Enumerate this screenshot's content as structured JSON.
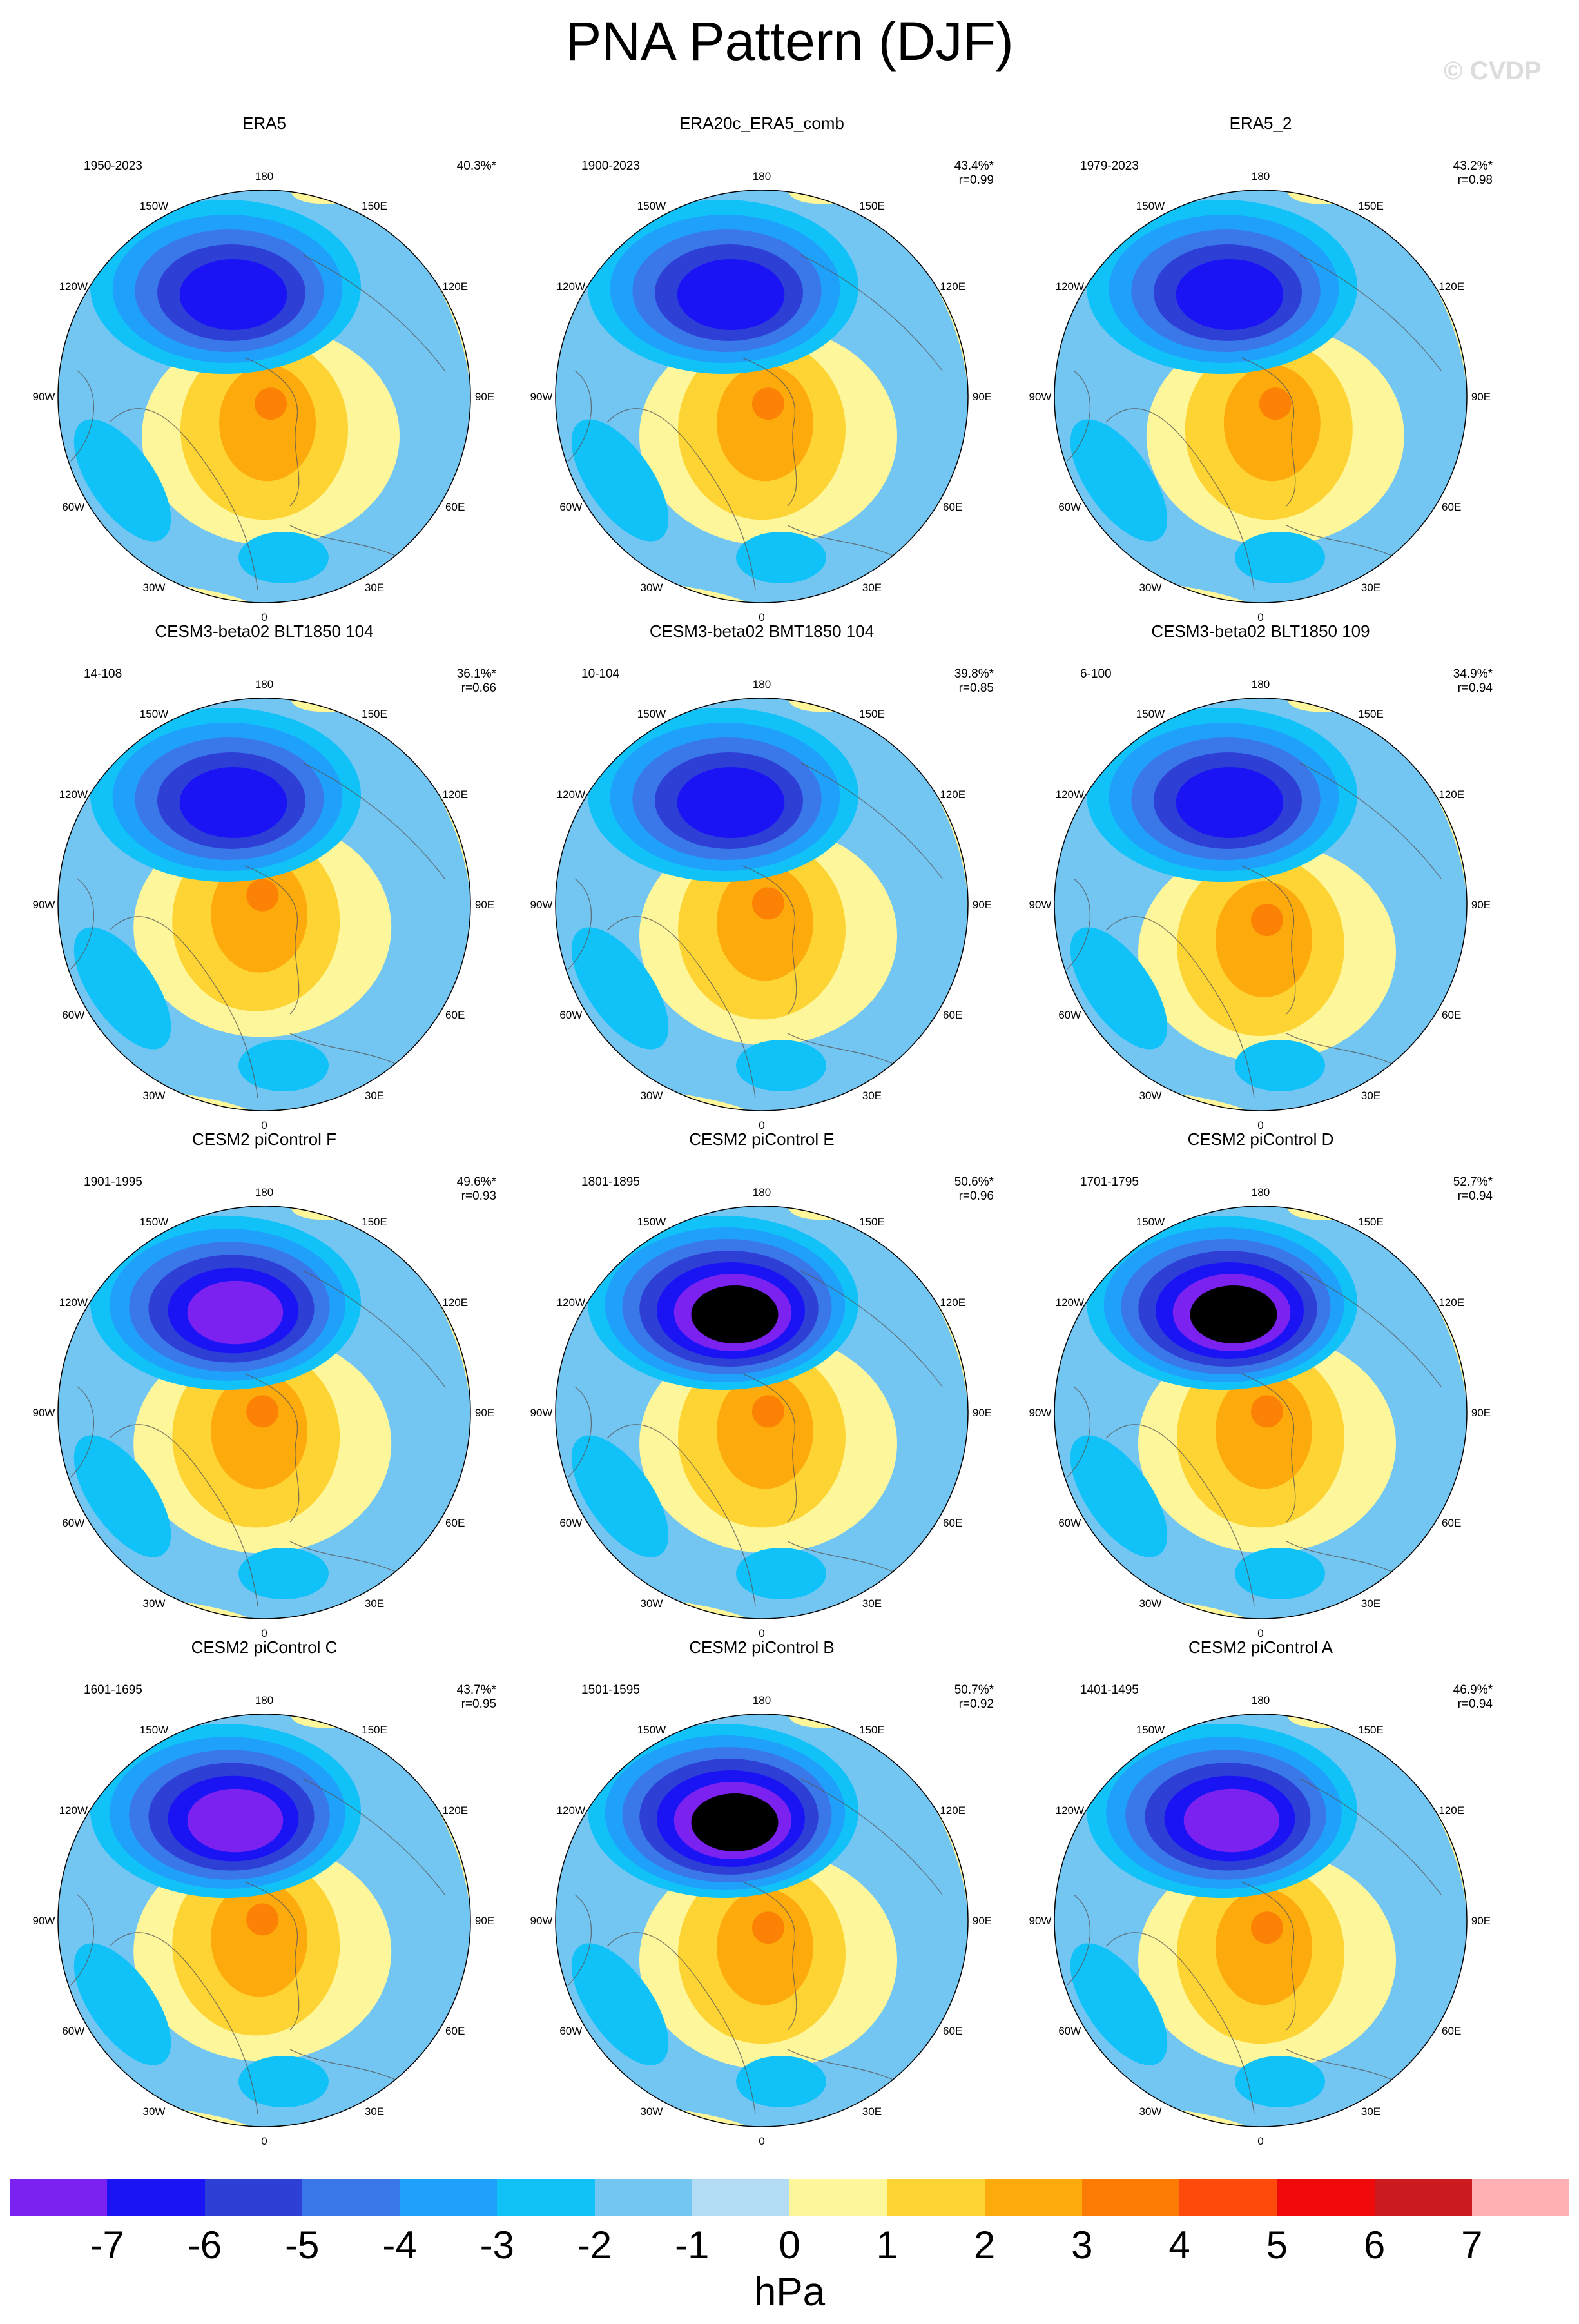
{
  "title": "PNA Pattern (DJF)",
  "watermark": "© CVDP",
  "lon_labels": [
    "180",
    "150E",
    "120E",
    "90E",
    "60E",
    "30E",
    "0",
    "30W",
    "60W",
    "90W",
    "120W",
    "150W"
  ],
  "panels": [
    {
      "title": "ERA5",
      "period": "1950-2023",
      "pct": "40.3%*",
      "corr": "",
      "low_level": 5,
      "low_min": -5,
      "high_min": 2,
      "high_pos": [
        0.5,
        0.58
      ]
    },
    {
      "title": "ERA20c_ERA5_comb",
      "period": "1900-2023",
      "pct": "43.4%*",
      "corr": "r=0.99",
      "low_level": 5,
      "high_pos": [
        0.5,
        0.58
      ]
    },
    {
      "title": "ERA5_2",
      "period": "1979-2023",
      "pct": "43.2%*",
      "corr": "r=0.98",
      "low_level": 5,
      "high_pos": [
        0.52,
        0.58
      ]
    },
    {
      "title": "CESM3-beta02 BLT1850 104",
      "period": "14-108",
      "pct": "36.1%*",
      "corr": "r=0.66",
      "low_level": 5,
      "high_pos": [
        0.48,
        0.54
      ]
    },
    {
      "title": "CESM3-beta02 BMT1850 104",
      "period": "10-104",
      "pct": "39.8%*",
      "corr": "r=0.85",
      "low_level": 5,
      "high_pos": [
        0.5,
        0.56
      ]
    },
    {
      "title": "CESM3-beta02 BLT1850 109",
      "period": "6-100",
      "pct": "34.9%*",
      "corr": "r=0.94",
      "low_level": 5,
      "high_pos": [
        0.5,
        0.6
      ]
    },
    {
      "title": "CESM2 piControl F",
      "period": "1901-1995",
      "pct": "49.6%*",
      "corr": "r=0.93",
      "low_level": 6,
      "high_pos": [
        0.48,
        0.56
      ]
    },
    {
      "title": "CESM2 piControl E",
      "period": "1801-1895",
      "pct": "50.6%*",
      "corr": "r=0.96",
      "low_level": 7,
      "high_pos": [
        0.5,
        0.56
      ]
    },
    {
      "title": "CESM2 piControl D",
      "period": "1701-1795",
      "pct": "52.7%*",
      "corr": "r=0.94",
      "low_level": 7,
      "high_pos": [
        0.5,
        0.56
      ]
    },
    {
      "title": "CESM2 piControl C",
      "period": "1601-1695",
      "pct": "43.7%*",
      "corr": "r=0.95",
      "low_level": 6,
      "high_pos": [
        0.48,
        0.56
      ]
    },
    {
      "title": "CESM2 piControl B",
      "period": "1501-1595",
      "pct": "50.7%*",
      "corr": "r=0.92",
      "low_level": 7,
      "high_pos": [
        0.5,
        0.58
      ]
    },
    {
      "title": "CESM2 piControl A",
      "period": "1401-1495",
      "pct": "46.9%*",
      "corr": "r=0.94",
      "low_level": 6,
      "high_pos": [
        0.5,
        0.58
      ]
    }
  ],
  "colorbar": {
    "colors": [
      "#7b22f0",
      "#1a14f5",
      "#2e3fd6",
      "#3a78ea",
      "#1fa0fb",
      "#10c2f8",
      "#74c6f2",
      "#b1dcf4",
      "#fef69a",
      "#fdd434",
      "#fdaa0d",
      "#fc7b05",
      "#fe4a0a",
      "#f10a0a",
      "#cc1b1f",
      "#fdb1b2"
    ],
    "labels": [
      "-7",
      "-6",
      "-5",
      "-4",
      "-3",
      "-2",
      "-1",
      "0",
      "1",
      "2",
      "3",
      "4",
      "5",
      "6",
      "7"
    ],
    "units": "hPa"
  }
}
